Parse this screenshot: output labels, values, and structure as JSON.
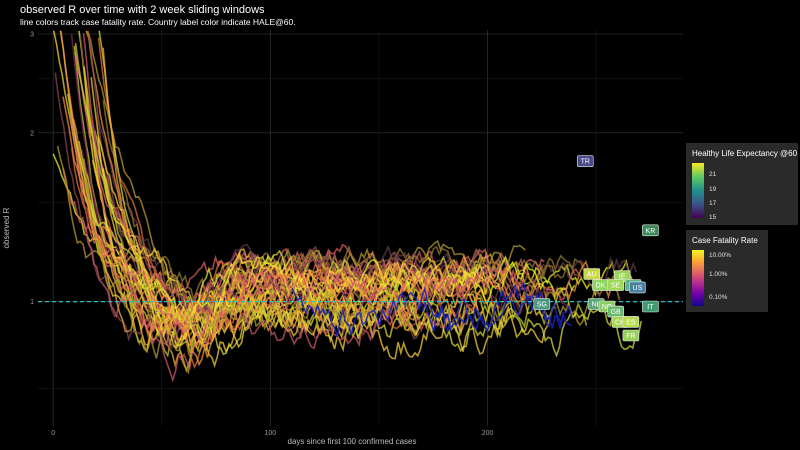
{
  "chart_data": {
    "type": "line",
    "title": "observed R over time with 2 week sliding windows",
    "subtitle": "line colors track case fatality rate. Country label color indicate HALE@60.",
    "xlabel": "days since first 100 confirmed cases",
    "ylabel": "observed R",
    "x_ticks": [
      "0",
      "100",
      "200"
    ],
    "y_ticks": [
      "1",
      "2",
      "3"
    ],
    "xlim": [
      -7,
      290
    ],
    "ylim": [
      0.6,
      3.05
    ],
    "y_scale": "log",
    "grid": true,
    "reference_line": {
      "y": 1,
      "color": "#2bbdc4",
      "style": "dashed"
    },
    "legends": [
      {
        "title": "Healthy Life Expectancy @60",
        "type": "colorbar",
        "ticks": [
          "21",
          "19",
          "17",
          "15"
        ],
        "colors": [
          "#fde725",
          "#5ec962",
          "#21918c",
          "#3b528b",
          "#440154"
        ],
        "placement": "right"
      },
      {
        "title": "Case Fatality Rate",
        "type": "colorbar",
        "ticks": [
          "10.00%",
          "1.00%",
          "0.10%"
        ],
        "colors": [
          "#f0f921",
          "#fca636",
          "#e16462",
          "#b12a90",
          "#6a00a8",
          "#0d0887"
        ],
        "placement": "right"
      }
    ],
    "countries": [
      {
        "code": "TR",
        "x": 245,
        "y": 1.78,
        "color": "#4a4a8a"
      },
      {
        "code": "KR",
        "x": 275,
        "y": 1.34,
        "color": "#3b8a5c"
      },
      {
        "code": "AU",
        "x": 248,
        "y": 1.12,
        "color": "#c8d84a"
      },
      {
        "code": "IE",
        "x": 262,
        "y": 1.11,
        "color": "#9bd65a"
      },
      {
        "code": "DK",
        "x": 252,
        "y": 1.07,
        "color": "#8fd660"
      },
      {
        "code": "SE",
        "x": 259,
        "y": 1.07,
        "color": "#a0d85a"
      },
      {
        "code": "FI",
        "x": 267,
        "y": 1.07,
        "color": "#5ab888"
      },
      {
        "code": "US",
        "x": 269,
        "y": 1.06,
        "color": "#4a80a0"
      },
      {
        "code": "SG",
        "x": 225,
        "y": 0.99,
        "color": "#4a9a80"
      },
      {
        "code": "NL",
        "x": 250,
        "y": 0.99,
        "color": "#5aa878"
      },
      {
        "code": "NO",
        "x": 255,
        "y": 0.98,
        "color": "#8acc60"
      },
      {
        "code": "IT",
        "x": 275,
        "y": 0.98,
        "color": "#3f9c70"
      },
      {
        "code": "GB",
        "x": 259,
        "y": 0.96,
        "color": "#6ab870"
      },
      {
        "code": "CH",
        "x": 261,
        "y": 0.92,
        "color": "#a8d858"
      },
      {
        "code": "ES",
        "x": 266,
        "y": 0.92,
        "color": "#b8dc50"
      },
      {
        "code": "FR",
        "x": 266,
        "y": 0.87,
        "color": "#98d05a"
      }
    ]
  }
}
